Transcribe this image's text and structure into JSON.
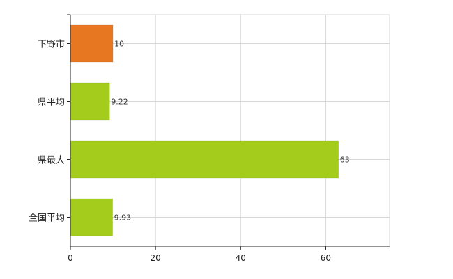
{
  "chart_data": {
    "type": "bar",
    "orientation": "horizontal",
    "categories": [
      "下野市",
      "県平均",
      "県最大",
      "全国平均"
    ],
    "values": [
      10,
      9.22,
      63,
      9.93
    ],
    "value_labels": [
      "10",
      "9.22",
      "63",
      "9.93"
    ],
    "bar_colors": [
      "#e87722",
      "#a3cc1d",
      "#a3cc1d",
      "#a3cc1d"
    ],
    "xlim": [
      0,
      75
    ],
    "xticks": [
      0,
      20,
      40,
      60
    ],
    "xtick_labels": [
      "0",
      "20",
      "40",
      "60"
    ],
    "grid": true,
    "title": "",
    "xlabel": "",
    "ylabel": ""
  }
}
